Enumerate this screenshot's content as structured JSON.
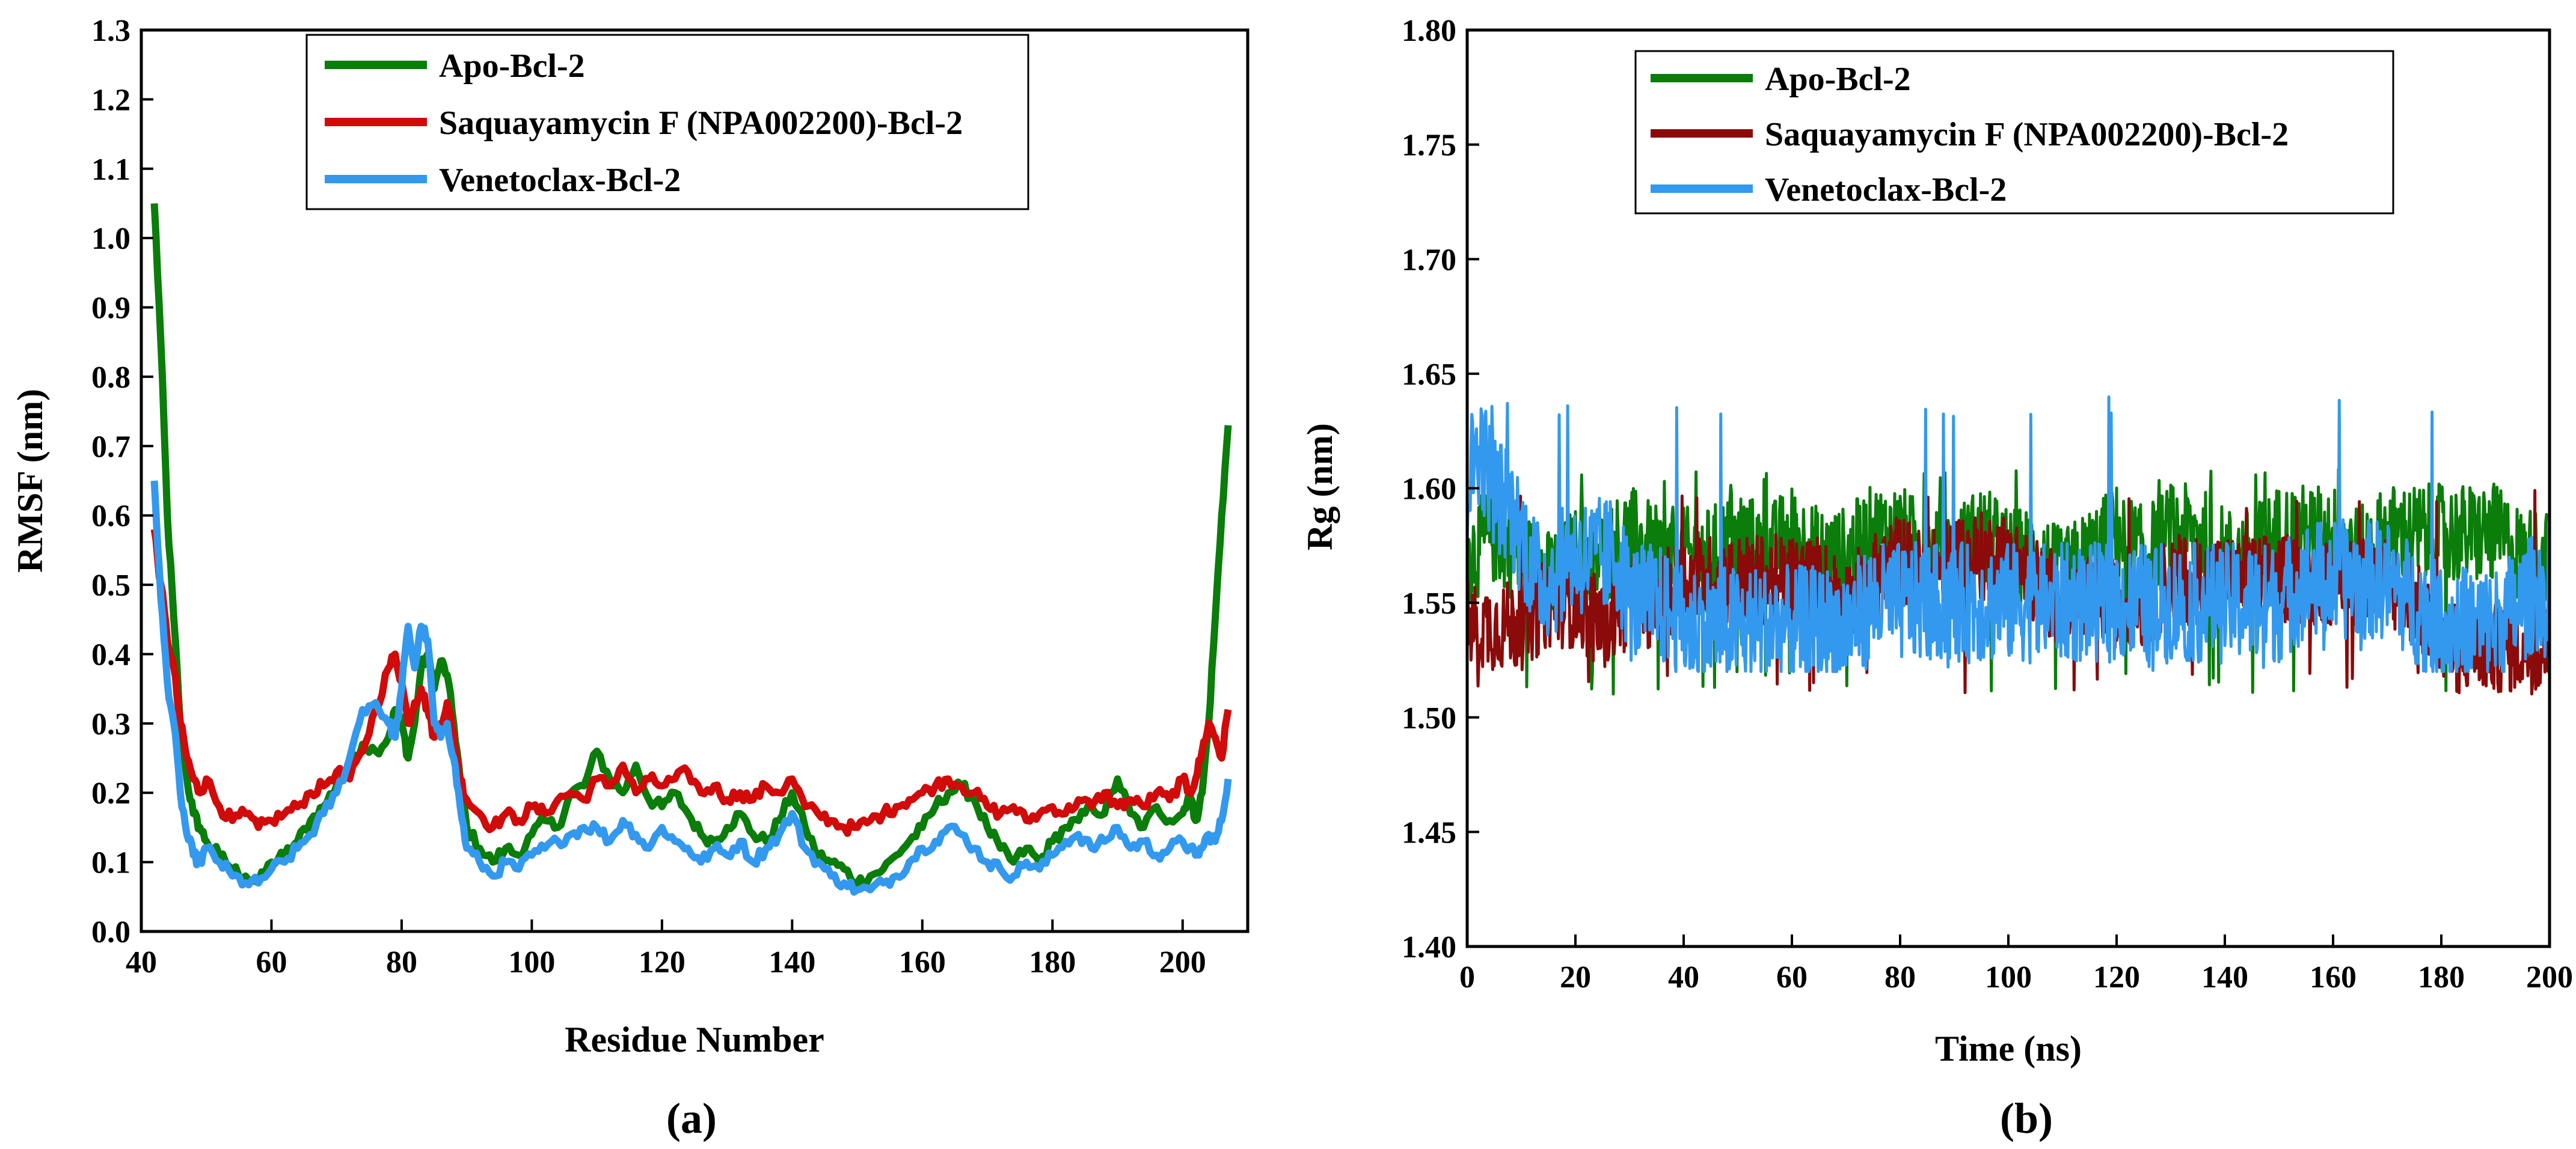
{
  "chart_data": [
    {
      "type": "line",
      "panel_label": "(a)",
      "xlabel": "Residue Number",
      "ylabel": "RMSF (nm)",
      "xlim": [
        40,
        210
      ],
      "ylim": [
        0.0,
        1.3
      ],
      "xticks": [
        "40",
        "60",
        "80",
        "100",
        "120",
        "140",
        "160",
        "180",
        "200"
      ],
      "yticks": [
        "0.0",
        "0.1",
        "0.2",
        "0.3",
        "0.4",
        "0.5",
        "0.6",
        "0.7",
        "0.8",
        "0.9",
        "1.0",
        "1.1",
        "1.2",
        "1.3"
      ],
      "legend_position": "top-center",
      "series": [
        {
          "name": "Apo-Bcl-2",
          "color": "#0a7d0a",
          "x": [
            42,
            43,
            44,
            45,
            46,
            47,
            48,
            49,
            50,
            52,
            54,
            56,
            58,
            60,
            62,
            64,
            66,
            68,
            70,
            72,
            74,
            76,
            78,
            79,
            80,
            81,
            82,
            83,
            84,
            85,
            86,
            87,
            88,
            89,
            90,
            92,
            94,
            96,
            98,
            100,
            102,
            104,
            106,
            108,
            110,
            112,
            114,
            116,
            118,
            120,
            122,
            124,
            126,
            128,
            130,
            132,
            134,
            136,
            138,
            140,
            142,
            144,
            146,
            148,
            150,
            152,
            154,
            156,
            158,
            160,
            162,
            164,
            166,
            168,
            170,
            172,
            174,
            176,
            178,
            180,
            182,
            184,
            186,
            188,
            190,
            192,
            194,
            196,
            198,
            200,
            201,
            202,
            203,
            204,
            205,
            206,
            207
          ],
          "y": [
            1.05,
            0.85,
            0.6,
            0.45,
            0.3,
            0.22,
            0.17,
            0.15,
            0.13,
            0.11,
            0.09,
            0.08,
            0.07,
            0.1,
            0.11,
            0.13,
            0.16,
            0.18,
            0.21,
            0.24,
            0.27,
            0.26,
            0.28,
            0.32,
            0.3,
            0.25,
            0.3,
            0.38,
            0.4,
            0.35,
            0.39,
            0.37,
            0.3,
            0.22,
            0.15,
            0.12,
            0.1,
            0.12,
            0.11,
            0.14,
            0.16,
            0.15,
            0.2,
            0.21,
            0.26,
            0.22,
            0.2,
            0.24,
            0.19,
            0.18,
            0.2,
            0.17,
            0.14,
            0.13,
            0.15,
            0.17,
            0.14,
            0.13,
            0.16,
            0.2,
            0.15,
            0.11,
            0.1,
            0.09,
            0.07,
            0.08,
            0.09,
            0.11,
            0.13,
            0.15,
            0.18,
            0.2,
            0.21,
            0.19,
            0.15,
            0.12,
            0.1,
            0.12,
            0.1,
            0.13,
            0.15,
            0.16,
            0.18,
            0.17,
            0.22,
            0.17,
            0.15,
            0.18,
            0.16,
            0.17,
            0.2,
            0.16,
            0.2,
            0.3,
            0.45,
            0.6,
            0.73
          ]
        },
        {
          "name": "Saquayamycin F (NPA002200)-Bcl-2",
          "color": "#d10a0a",
          "x": [
            42,
            43,
            44,
            45,
            46,
            47,
            48,
            49,
            50,
            52,
            54,
            56,
            58,
            60,
            62,
            64,
            66,
            68,
            70,
            72,
            74,
            76,
            78,
            79,
            80,
            81,
            82,
            83,
            84,
            85,
            86,
            87,
            88,
            89,
            90,
            92,
            94,
            96,
            98,
            100,
            102,
            104,
            106,
            108,
            110,
            112,
            114,
            116,
            118,
            120,
            122,
            124,
            126,
            128,
            130,
            132,
            134,
            136,
            138,
            140,
            142,
            144,
            146,
            148,
            150,
            152,
            154,
            156,
            158,
            160,
            162,
            164,
            166,
            168,
            170,
            172,
            174,
            176,
            178,
            180,
            182,
            184,
            186,
            188,
            190,
            192,
            194,
            196,
            198,
            200,
            201,
            202,
            203,
            204,
            205,
            206,
            207
          ],
          "y": [
            0.58,
            0.5,
            0.42,
            0.38,
            0.3,
            0.25,
            0.22,
            0.2,
            0.22,
            0.18,
            0.16,
            0.17,
            0.15,
            0.16,
            0.17,
            0.18,
            0.2,
            0.21,
            0.23,
            0.22,
            0.26,
            0.32,
            0.38,
            0.4,
            0.36,
            0.3,
            0.33,
            0.35,
            0.32,
            0.28,
            0.3,
            0.33,
            0.28,
            0.22,
            0.19,
            0.17,
            0.15,
            0.17,
            0.16,
            0.18,
            0.17,
            0.19,
            0.2,
            0.19,
            0.22,
            0.21,
            0.24,
            0.2,
            0.22,
            0.21,
            0.22,
            0.23,
            0.2,
            0.21,
            0.19,
            0.2,
            0.19,
            0.21,
            0.2,
            0.22,
            0.18,
            0.17,
            0.16,
            0.15,
            0.15,
            0.16,
            0.17,
            0.18,
            0.19,
            0.2,
            0.21,
            0.22,
            0.21,
            0.2,
            0.18,
            0.17,
            0.18,
            0.16,
            0.17,
            0.18,
            0.17,
            0.19,
            0.18,
            0.2,
            0.18,
            0.19,
            0.18,
            0.2,
            0.19,
            0.22,
            0.2,
            0.22,
            0.26,
            0.3,
            0.28,
            0.25,
            0.32
          ]
        },
        {
          "name": "Venetoclax-Bcl-2",
          "color": "#3399ee",
          "x": [
            42,
            43,
            44,
            45,
            46,
            47,
            48,
            49,
            50,
            52,
            54,
            56,
            58,
            60,
            62,
            64,
            66,
            68,
            70,
            72,
            74,
            76,
            78,
            79,
            80,
            81,
            82,
            83,
            84,
            85,
            86,
            87,
            88,
            89,
            90,
            92,
            94,
            96,
            98,
            100,
            102,
            104,
            106,
            108,
            110,
            112,
            114,
            116,
            118,
            120,
            122,
            124,
            126,
            128,
            130,
            132,
            134,
            136,
            138,
            140,
            142,
            144,
            146,
            148,
            150,
            152,
            154,
            156,
            158,
            160,
            162,
            164,
            166,
            168,
            170,
            172,
            174,
            176,
            178,
            180,
            182,
            184,
            186,
            188,
            190,
            192,
            194,
            196,
            198,
            200,
            201,
            202,
            203,
            204,
            205,
            206,
            207
          ],
          "y": [
            0.65,
            0.48,
            0.36,
            0.3,
            0.2,
            0.14,
            0.11,
            0.1,
            0.12,
            0.1,
            0.08,
            0.07,
            0.07,
            0.09,
            0.1,
            0.12,
            0.14,
            0.17,
            0.2,
            0.25,
            0.32,
            0.33,
            0.3,
            0.28,
            0.35,
            0.44,
            0.38,
            0.44,
            0.42,
            0.3,
            0.28,
            0.3,
            0.25,
            0.18,
            0.12,
            0.1,
            0.08,
            0.1,
            0.09,
            0.11,
            0.12,
            0.13,
            0.14,
            0.15,
            0.15,
            0.13,
            0.16,
            0.14,
            0.12,
            0.15,
            0.13,
            0.12,
            0.1,
            0.12,
            0.11,
            0.13,
            0.1,
            0.12,
            0.14,
            0.17,
            0.12,
            0.1,
            0.08,
            0.07,
            0.06,
            0.06,
            0.07,
            0.08,
            0.1,
            0.12,
            0.13,
            0.15,
            0.14,
            0.12,
            0.1,
            0.09,
            0.08,
            0.1,
            0.09,
            0.11,
            0.13,
            0.14,
            0.12,
            0.13,
            0.15,
            0.12,
            0.13,
            0.11,
            0.12,
            0.13,
            0.12,
            0.11,
            0.12,
            0.14,
            0.13,
            0.16,
            0.22
          ]
        }
      ]
    },
    {
      "type": "line",
      "panel_label": "(b)",
      "xlabel": "Time (ns)",
      "ylabel": "Rg (nm)",
      "xlim": [
        0,
        200
      ],
      "ylim": [
        1.4,
        1.8
      ],
      "xticks": [
        "0",
        "20",
        "40",
        "60",
        "80",
        "100",
        "120",
        "140",
        "160",
        "180",
        "200"
      ],
      "yticks": [
        "1.40",
        "1.45",
        "1.50",
        "1.55",
        "1.60",
        "1.65",
        "1.70",
        "1.75",
        "1.80"
      ],
      "legend_position": "top-center",
      "series": [
        {
          "name": "Apo-Bcl-2",
          "color": "#0a7d0a",
          "x": [
            0,
            5,
            10,
            15,
            20,
            25,
            30,
            35,
            40,
            45,
            50,
            55,
            60,
            65,
            70,
            75,
            80,
            85,
            90,
            95,
            100,
            105,
            110,
            115,
            120,
            125,
            130,
            135,
            140,
            145,
            150,
            155,
            160,
            165,
            170,
            175,
            180,
            185,
            190,
            195,
            200
          ],
          "y": [
            1.57,
            1.58,
            1.57,
            1.56,
            1.57,
            1.57,
            1.58,
            1.57,
            1.57,
            1.57,
            1.58,
            1.57,
            1.58,
            1.57,
            1.57,
            1.58,
            1.58,
            1.57,
            1.57,
            1.58,
            1.57,
            1.57,
            1.56,
            1.57,
            1.58,
            1.57,
            1.58,
            1.58,
            1.57,
            1.57,
            1.58,
            1.58,
            1.58,
            1.57,
            1.58,
            1.58,
            1.58,
            1.58,
            1.58,
            1.57,
            1.57
          ],
          "range_min": 1.51,
          "range_max": 1.61
        },
        {
          "name": "Saquayamycin F (NPA002200)-Bcl-2",
          "color": "#8b0a0a",
          "x": [
            0,
            5,
            10,
            15,
            20,
            25,
            30,
            35,
            40,
            45,
            50,
            55,
            60,
            65,
            70,
            75,
            80,
            85,
            90,
            95,
            100,
            105,
            110,
            115,
            120,
            125,
            130,
            135,
            140,
            145,
            150,
            155,
            160,
            165,
            170,
            175,
            180,
            185,
            190,
            195,
            200
          ],
          "y": [
            1.54,
            1.54,
            1.54,
            1.55,
            1.55,
            1.54,
            1.55,
            1.55,
            1.56,
            1.56,
            1.56,
            1.56,
            1.56,
            1.56,
            1.55,
            1.56,
            1.57,
            1.56,
            1.57,
            1.57,
            1.57,
            1.56,
            1.55,
            1.55,
            1.55,
            1.55,
            1.56,
            1.56,
            1.56,
            1.56,
            1.56,
            1.56,
            1.56,
            1.56,
            1.56,
            1.55,
            1.53,
            1.53,
            1.53,
            1.53,
            1.53
          ],
          "range_min": 1.51,
          "range_max": 1.6
        },
        {
          "name": "Venetoclax-Bcl-2",
          "color": "#3399ee",
          "x": [
            0,
            2,
            5,
            8,
            10,
            13,
            15,
            20,
            25,
            28,
            30,
            35,
            40,
            45,
            50,
            55,
            60,
            65,
            70,
            75,
            80,
            85,
            90,
            95,
            100,
            105,
            110,
            115,
            120,
            125,
            130,
            135,
            140,
            145,
            150,
            155,
            160,
            165,
            170,
            175,
            180,
            185,
            190,
            195,
            200
          ],
          "y": [
            1.6,
            1.62,
            1.6,
            1.59,
            1.58,
            1.56,
            1.56,
            1.57,
            1.57,
            1.57,
            1.55,
            1.55,
            1.54,
            1.54,
            1.54,
            1.54,
            1.54,
            1.54,
            1.54,
            1.55,
            1.55,
            1.55,
            1.55,
            1.55,
            1.55,
            1.55,
            1.55,
            1.55,
            1.55,
            1.55,
            1.55,
            1.55,
            1.55,
            1.55,
            1.55,
            1.56,
            1.56,
            1.56,
            1.56,
            1.55,
            1.54,
            1.54,
            1.54,
            1.55,
            1.56
          ],
          "range_min": 1.52,
          "range_max": 1.64
        }
      ]
    }
  ]
}
